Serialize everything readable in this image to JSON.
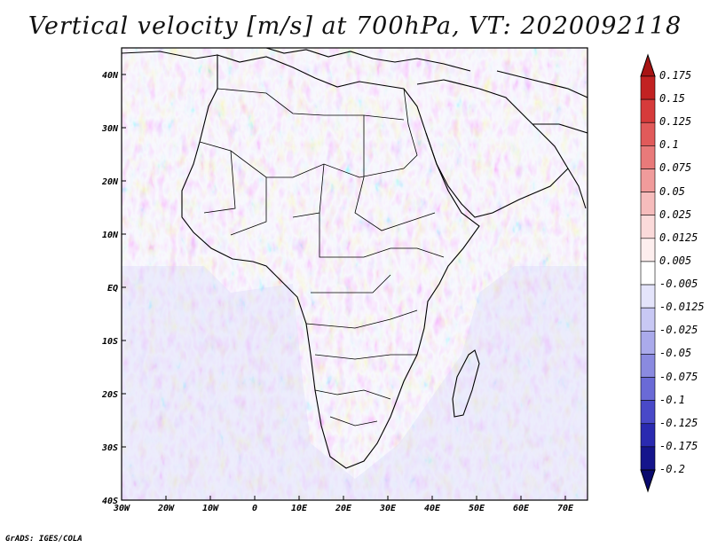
{
  "title": "Vertical velocity [m/s] at 700hPa, VT: 2020092118",
  "footer": "GrADS: IGES/COLA",
  "map": {
    "lon_ticks": [
      "30W",
      "20W",
      "10W",
      "0",
      "10E",
      "20E",
      "30E",
      "40E",
      "50E",
      "60E",
      "70E"
    ],
    "lat_ticks": [
      "40N",
      "30N",
      "20N",
      "10N",
      "EQ",
      "10S",
      "20S",
      "30S",
      "40S"
    ]
  },
  "colorbar": {
    "levels": [
      "0.175",
      "0.15",
      "0.125",
      "0.1",
      "0.075",
      "0.05",
      "0.025",
      "0.0125",
      "0.005",
      "-0.005",
      "-0.0125",
      "-0.025",
      "-0.05",
      "-0.075",
      "-0.1",
      "-0.125",
      "-0.175",
      "-0.2"
    ],
    "colors": [
      "#a81414",
      "#c22222",
      "#d63b3b",
      "#e15a5a",
      "#e97a7a",
      "#f09b9b",
      "#f6bcbc",
      "#fbdada",
      "#fdeeee",
      "#ffffff",
      "#e4e4fb",
      "#c8c8f4",
      "#aaaaeb",
      "#8a8ae0",
      "#6a6ad6",
      "#4949c8",
      "#2a2ab0",
      "#15158c",
      "#0a0a6e"
    ]
  }
}
